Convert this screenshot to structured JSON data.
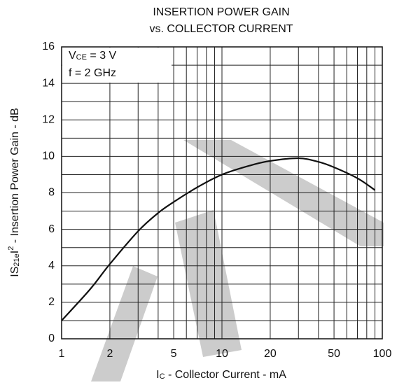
{
  "chart_data": {
    "type": "line",
    "title": [
      "INSERTION POWER GAIN",
      "vs. COLLECTOR CURRENT"
    ],
    "xlabel": [
      "I",
      "C",
      " - Collector Current - mA"
    ],
    "ylabel": [
      "IS",
      "21e",
      "I",
      "2",
      " - Insertion Power Gain - dB"
    ],
    "annotation": [
      [
        "V",
        "CE",
        " = 3 V"
      ],
      "f = 2 GHz"
    ],
    "x": [
      1,
      1.5,
      2,
      3,
      4,
      5,
      7,
      10,
      15,
      20,
      30,
      40,
      50,
      70,
      90
    ],
    "values": [
      1.0,
      2.7,
      4.1,
      5.9,
      6.9,
      7.5,
      8.3,
      9.0,
      9.5,
      9.75,
      9.9,
      9.7,
      9.4,
      8.8,
      8.15
    ],
    "color": "#111111",
    "xlog": true,
    "xlim": [
      1,
      100
    ],
    "xticks": [
      1,
      2,
      5,
      10,
      20,
      50,
      100
    ],
    "minor_xgrid": [
      3,
      4,
      6,
      7,
      8,
      9,
      30,
      40,
      60,
      70,
      80,
      90
    ],
    "ylim": [
      0,
      16
    ],
    "yticks": [
      0,
      2,
      4,
      6,
      8,
      10,
      12,
      14,
      16
    ],
    "minor_ygrid": [
      1,
      3,
      5,
      7,
      9,
      11,
      13,
      15
    ],
    "grid": true
  }
}
